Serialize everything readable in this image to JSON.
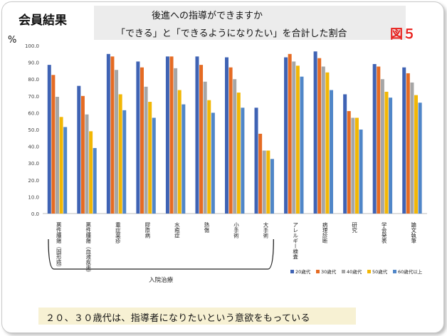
{
  "header": {
    "badge": "会員結果",
    "subtitle_line1": "後進への指導ができますか",
    "subtitle_line2": "「できる」と「できるようになりたい」を合計した割合",
    "figure_label": "図５"
  },
  "footer": {
    "note": "２０、３０歳代は、指導者になりたいという意欲をもっている"
  },
  "colors": {
    "series": [
      "#3f63b4",
      "#e56b23",
      "#a6a6a6",
      "#f2b705",
      "#5086c8"
    ],
    "accent": "#e8201c"
  },
  "chart_data": {
    "type": "bar",
    "ylabel": "%",
    "ylim": [
      0,
      100
    ],
    "yticks": [
      "0.0",
      "10.0",
      "20.0",
      "30.0",
      "40.0",
      "50.0",
      "60.0",
      "70.0",
      "80.0",
      "90.0",
      "100.0"
    ],
    "grid": false,
    "legend_position": "bottom-right",
    "categories": [
      "悪性腫瘍（固形癌）",
      "悪性腫瘍（血液疾患）",
      "重症薬疹",
      "膠原病",
      "水疱症",
      "熱傷",
      "小手術",
      "大手術",
      "アレルギー検査",
      "病理診断",
      "研究",
      "学会発表",
      "論文執筆"
    ],
    "group_label": "入院治療",
    "series": [
      {
        "name": "20歳代",
        "values": [
          88.5,
          76,
          95,
          90.5,
          93.5,
          93.5,
          93,
          63,
          93,
          96.5,
          71,
          89,
          87
        ]
      },
      {
        "name": "30歳代",
        "values": [
          82.5,
          70,
          93.5,
          87,
          93.5,
          88.5,
          87,
          47.5,
          95,
          92.5,
          61,
          87.5,
          83.5
        ]
      },
      {
        "name": "40歳代",
        "values": [
          69.5,
          59,
          85.5,
          75.5,
          86.5,
          78.5,
          80,
          37.5,
          90.5,
          87.5,
          57,
          80,
          78
        ]
      },
      {
        "name": "50歳代",
        "values": [
          57.5,
          49,
          71,
          66.5,
          73.5,
          67.5,
          72,
          37.5,
          88,
          84,
          57,
          72.5,
          70.5
        ]
      },
      {
        "name": "60歳代以上",
        "values": [
          51.5,
          39,
          61.5,
          57,
          65,
          60,
          63,
          32.5,
          81.5,
          73.5,
          50,
          69,
          66
        ]
      }
    ]
  }
}
